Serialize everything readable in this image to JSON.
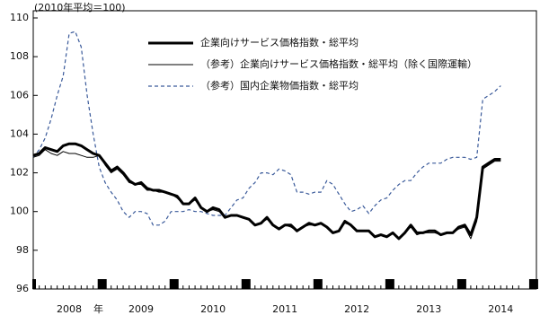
{
  "chart_data": {
    "type": "line",
    "title": "(2010年平均＝100)",
    "x_unit_label": "年",
    "categories": [
      null,
      null,
      null,
      null,
      null,
      null,
      "2008",
      null,
      null,
      null,
      null,
      null,
      null,
      null,
      null,
      null,
      null,
      null,
      "2009",
      null,
      null,
      null,
      null,
      null,
      null,
      null,
      null,
      null,
      null,
      null,
      "2010",
      null,
      null,
      null,
      null,
      null,
      null,
      null,
      null,
      null,
      null,
      null,
      "2011",
      null,
      null,
      null,
      null,
      null,
      null,
      null,
      null,
      null,
      null,
      null,
      "2012",
      null,
      null,
      null,
      null,
      null,
      null,
      null,
      null,
      null,
      null,
      null,
      "2013",
      null,
      null,
      null,
      null,
      null,
      null,
      null,
      null,
      null,
      null,
      null,
      "2014"
    ],
    "ylim": [
      96,
      110
    ],
    "yticks": [
      96,
      98,
      100,
      102,
      104,
      106,
      108,
      110
    ],
    "legend": "upper center",
    "series": [
      {
        "name": "企業向けサービス価格指数・総平均",
        "color": "#000000",
        "line_width": 3,
        "dash": false,
        "values": [
          102.9,
          103.0,
          103.3,
          103.2,
          103.1,
          103.4,
          103.5,
          103.5,
          103.4,
          103.2,
          103.0,
          102.9,
          102.5,
          102.1,
          102.3,
          102.0,
          101.6,
          101.4,
          101.5,
          101.2,
          101.1,
          101.1,
          101.0,
          100.9,
          100.8,
          100.4,
          100.4,
          100.7,
          100.2,
          100.0,
          100.2,
          100.1,
          99.7,
          99.8,
          99.8,
          99.7,
          99.6,
          99.3,
          99.4,
          99.7,
          99.3,
          99.1,
          99.3,
          99.3,
          99.0,
          99.2,
          99.4,
          99.3,
          99.4,
          99.2,
          98.9,
          99.0,
          99.5,
          99.3,
          99.0,
          99.0,
          99.0,
          98.7,
          98.8,
          98.7,
          98.9,
          98.6,
          98.9,
          99.3,
          98.9,
          98.9,
          99.0,
          99.0,
          98.8,
          98.9,
          98.9,
          99.2,
          99.3,
          98.8,
          99.7,
          102.3,
          102.5,
          102.7,
          102.7
        ]
      },
      {
        "name": "（参考）企業向けサービス価格指数・総平均（除く国際運輸）",
        "color": "#000000",
        "line_width": 1,
        "dash": false,
        "values": [
          102.8,
          102.9,
          103.2,
          103.0,
          102.9,
          103.1,
          103.0,
          103.0,
          102.9,
          102.8,
          102.8,
          102.9,
          102.4,
          102.0,
          102.2,
          101.9,
          101.5,
          101.4,
          101.4,
          101.1,
          101.1,
          101.0,
          101.0,
          100.9,
          100.7,
          100.4,
          100.4,
          100.6,
          100.2,
          100.0,
          100.1,
          100.0,
          99.7,
          99.8,
          99.8,
          99.7,
          99.6,
          99.3,
          99.4,
          99.6,
          99.3,
          99.1,
          99.3,
          99.2,
          99.0,
          99.2,
          99.3,
          99.3,
          99.4,
          99.2,
          98.9,
          99.0,
          99.4,
          99.3,
          99.0,
          99.0,
          99.0,
          98.7,
          98.8,
          98.7,
          98.9,
          98.6,
          98.9,
          99.2,
          98.8,
          98.9,
          98.9,
          98.9,
          98.8,
          98.9,
          98.9,
          99.1,
          99.2,
          98.6,
          99.5,
          102.2,
          102.4,
          102.6,
          102.6
        ]
      },
      {
        "name": "（参考）国内企業物価指数・総平均",
        "color": "#3a5a9a",
        "line_width": 1.2,
        "dash": true,
        "values": [
          102.8,
          103.2,
          103.8,
          104.8,
          106.0,
          107.0,
          109.2,
          109.3,
          108.5,
          106.0,
          104.0,
          102.3,
          101.5,
          101.0,
          100.6,
          100.0,
          99.7,
          100.0,
          100.0,
          99.9,
          99.3,
          99.3,
          99.5,
          100.0,
          100.0,
          100.0,
          100.1,
          100.0,
          100.0,
          99.9,
          99.8,
          99.8,
          99.8,
          100.2,
          100.6,
          100.7,
          101.2,
          101.5,
          102.0,
          102.0,
          101.9,
          102.2,
          102.1,
          101.9,
          101.0,
          101.0,
          100.9,
          101.0,
          101.0,
          101.6,
          101.4,
          100.9,
          100.4,
          100.0,
          100.1,
          100.3,
          99.9,
          100.3,
          100.6,
          100.7,
          101.1,
          101.4,
          101.6,
          101.6,
          102.0,
          102.3,
          102.5,
          102.5,
          102.5,
          102.7,
          102.8,
          102.8,
          102.8,
          102.7,
          102.8,
          105.8,
          106.0,
          106.2,
          106.5
        ]
      }
    ]
  }
}
